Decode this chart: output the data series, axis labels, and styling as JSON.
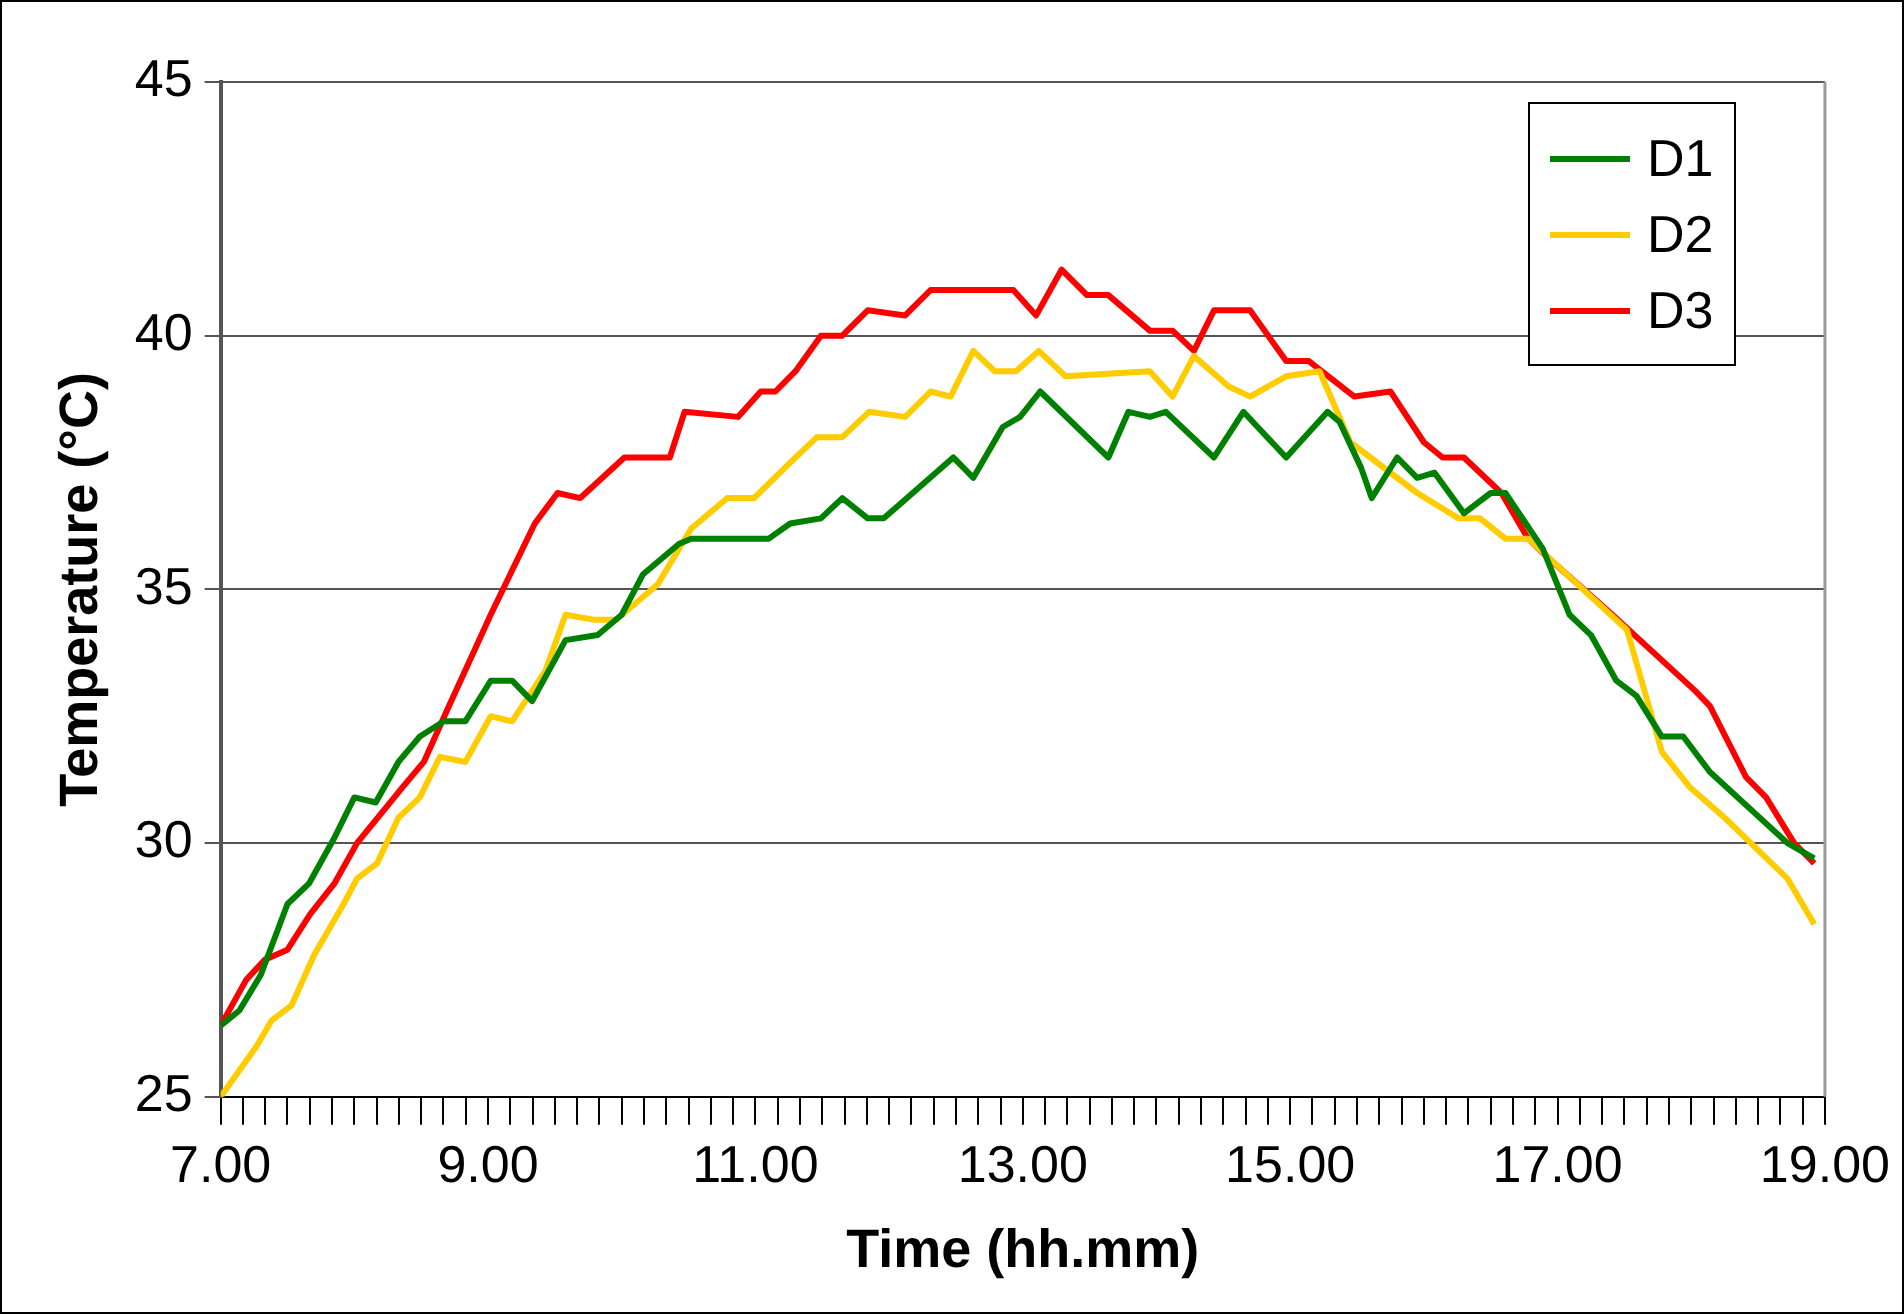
{
  "chart_data": {
    "type": "line",
    "xlabel": "Time (hh.mm)",
    "ylabel": "Temperature (°C)",
    "xlim": [
      7,
      19
    ],
    "ylim": [
      25,
      45
    ],
    "yticks": [
      25,
      30,
      35,
      40,
      45
    ],
    "xticks": [
      {
        "value": 7,
        "label": "7.00"
      },
      {
        "value": 7.1667,
        "label": null
      },
      {
        "value": 7.3333,
        "label": null
      },
      {
        "value": 7.5,
        "label": null
      },
      {
        "value": 7.6667,
        "label": null
      },
      {
        "value": 7.8333,
        "label": null
      },
      {
        "value": 8,
        "label": null
      },
      {
        "value": 8.1667,
        "label": null
      },
      {
        "value": 8.3333,
        "label": null
      },
      {
        "value": 8.5,
        "label": null
      },
      {
        "value": 8.6667,
        "label": null
      },
      {
        "value": 8.8333,
        "label": null
      },
      {
        "value": 9,
        "label": "9.00"
      },
      {
        "value": 9.1667,
        "label": null
      },
      {
        "value": 9.3333,
        "label": null
      },
      {
        "value": 9.5,
        "label": null
      },
      {
        "value": 9.6667,
        "label": null
      },
      {
        "value": 9.8333,
        "label": null
      },
      {
        "value": 10,
        "label": null
      },
      {
        "value": 10.1667,
        "label": null
      },
      {
        "value": 10.3333,
        "label": null
      },
      {
        "value": 10.5,
        "label": null
      },
      {
        "value": 10.6667,
        "label": null
      },
      {
        "value": 10.8333,
        "label": null
      },
      {
        "value": 11,
        "label": "11.00"
      },
      {
        "value": 11.1667,
        "label": null
      },
      {
        "value": 11.3333,
        "label": null
      },
      {
        "value": 11.5,
        "label": null
      },
      {
        "value": 11.6667,
        "label": null
      },
      {
        "value": 11.8333,
        "label": null
      },
      {
        "value": 12,
        "label": null
      },
      {
        "value": 12.1667,
        "label": null
      },
      {
        "value": 12.3333,
        "label": null
      },
      {
        "value": 12.5,
        "label": null
      },
      {
        "value": 12.6667,
        "label": null
      },
      {
        "value": 12.8333,
        "label": null
      },
      {
        "value": 13,
        "label": "13.00"
      },
      {
        "value": 13.1667,
        "label": null
      },
      {
        "value": 13.3333,
        "label": null
      },
      {
        "value": 13.5,
        "label": null
      },
      {
        "value": 13.6667,
        "label": null
      },
      {
        "value": 13.8333,
        "label": null
      },
      {
        "value": 14,
        "label": null
      },
      {
        "value": 14.1667,
        "label": null
      },
      {
        "value": 14.3333,
        "label": null
      },
      {
        "value": 14.5,
        "label": null
      },
      {
        "value": 14.6667,
        "label": null
      },
      {
        "value": 14.8333,
        "label": null
      },
      {
        "value": 15,
        "label": "15.00"
      },
      {
        "value": 15.1667,
        "label": null
      },
      {
        "value": 15.3333,
        "label": null
      },
      {
        "value": 15.5,
        "label": null
      },
      {
        "value": 15.6667,
        "label": null
      },
      {
        "value": 15.8333,
        "label": null
      },
      {
        "value": 16,
        "label": null
      },
      {
        "value": 16.1667,
        "label": null
      },
      {
        "value": 16.3333,
        "label": null
      },
      {
        "value": 16.5,
        "label": null
      },
      {
        "value": 16.6667,
        "label": null
      },
      {
        "value": 16.8333,
        "label": null
      },
      {
        "value": 17,
        "label": "17.00"
      },
      {
        "value": 17.1667,
        "label": null
      },
      {
        "value": 17.3333,
        "label": null
      },
      {
        "value": 17.5,
        "label": null
      },
      {
        "value": 17.6667,
        "label": null
      },
      {
        "value": 17.8333,
        "label": null
      },
      {
        "value": 18,
        "label": null
      },
      {
        "value": 18.1667,
        "label": null
      },
      {
        "value": 18.3333,
        "label": null
      },
      {
        "value": 18.5,
        "label": null
      },
      {
        "value": 18.6667,
        "label": null
      },
      {
        "value": 18.8333,
        "label": null
      },
      {
        "value": 19,
        "label": "19.00"
      }
    ],
    "grid": "y",
    "legend": "top right",
    "marker": "none",
    "line_style": "solid",
    "series": [
      {
        "name": "D1",
        "color": "#008000",
        "x": [
          7.0,
          7.14,
          7.3,
          7.5,
          7.66,
          7.85,
          8.0,
          8.16,
          8.33,
          8.49,
          8.67,
          8.83,
          9.02,
          9.18,
          9.33,
          9.58,
          9.82,
          10.0,
          10.16,
          10.43,
          10.52,
          11.1,
          11.26,
          11.49,
          11.65,
          11.84,
          11.96,
          12.48,
          12.63,
          12.85,
          12.98,
          13.13,
          13.64,
          13.79,
          13.95,
          14.07,
          14.23,
          14.43,
          14.65,
          14.97,
          15.28,
          15.37,
          15.53,
          15.61,
          15.8,
          15.95,
          16.08,
          16.3,
          16.5,
          16.61,
          16.89,
          17.09,
          17.25,
          17.44,
          17.59,
          17.78,
          17.94,
          18.14,
          18.72,
          18.92
        ],
        "values": [
          26.4,
          26.7,
          27.4,
          28.8,
          29.2,
          30.1,
          30.9,
          30.8,
          31.6,
          32.1,
          32.4,
          32.4,
          33.2,
          33.2,
          32.8,
          34.0,
          34.1,
          34.5,
          35.3,
          35.9,
          36.0,
          36.0,
          36.3,
          36.4,
          36.8,
          36.4,
          36.4,
          37.6,
          37.2,
          38.2,
          38.4,
          38.9,
          37.6,
          38.5,
          38.4,
          38.5,
          38.1,
          37.6,
          38.5,
          37.6,
          38.5,
          38.3,
          37.4,
          36.8,
          37.6,
          37.2,
          37.3,
          36.5,
          36.9,
          36.9,
          35.8,
          34.5,
          34.1,
          33.2,
          32.9,
          32.1,
          32.1,
          31.4,
          30.0,
          29.7
        ]
      },
      {
        "name": "D2",
        "color": "#ffcc00",
        "x": [
          7.0,
          7.27,
          7.38,
          7.53,
          7.7,
          7.92,
          8.02,
          8.17,
          8.33,
          8.49,
          8.64,
          8.83,
          9.02,
          9.18,
          9.43,
          9.58,
          9.8,
          9.96,
          10.27,
          10.52,
          10.79,
          10.99,
          11.26,
          11.46,
          11.65,
          11.85,
          12.12,
          12.31,
          12.46,
          12.63,
          12.79,
          12.95,
          13.12,
          13.32,
          13.95,
          14.12,
          14.28,
          14.54,
          14.7,
          14.97,
          15.22,
          15.45,
          15.95,
          16.26,
          16.42,
          16.61,
          16.78,
          17.52,
          17.78,
          17.99,
          18.25,
          18.72,
          18.92
        ],
        "values": [
          25.0,
          26.0,
          26.5,
          26.8,
          27.8,
          28.8,
          29.3,
          29.6,
          30.5,
          30.9,
          31.7,
          31.6,
          32.5,
          32.4,
          33.4,
          34.5,
          34.4,
          34.4,
          35.1,
          36.2,
          36.8,
          36.8,
          37.5,
          38.0,
          38.0,
          38.5,
          38.4,
          38.9,
          38.8,
          39.7,
          39.3,
          39.3,
          39.7,
          39.2,
          39.3,
          38.8,
          39.6,
          39.0,
          38.8,
          39.2,
          39.3,
          37.9,
          36.9,
          36.4,
          36.4,
          36.0,
          36.0,
          34.2,
          31.8,
          31.1,
          30.5,
          29.3,
          28.4
        ]
      },
      {
        "name": "D3",
        "color": "#ff0000",
        "x": [
          7.0,
          7.19,
          7.33,
          7.5,
          7.67,
          7.85,
          8.02,
          8.36,
          8.52,
          8.69,
          9.02,
          9.35,
          9.52,
          9.69,
          10.02,
          10.36,
          10.47,
          10.87,
          11.04,
          11.15,
          11.3,
          11.49,
          11.65,
          11.84,
          12.12,
          12.31,
          12.93,
          13.1,
          13.29,
          13.48,
          13.64,
          13.95,
          14.12,
          14.28,
          14.43,
          14.7,
          14.97,
          15.14,
          15.48,
          15.75,
          16.0,
          16.14,
          16.3,
          16.58,
          16.78,
          16.94,
          17.41,
          18.03,
          18.14,
          18.41,
          18.56,
          18.77,
          18.92
        ],
        "values": [
          26.4,
          27.3,
          27.7,
          27.9,
          28.6,
          29.2,
          30.0,
          31.1,
          31.6,
          32.6,
          34.5,
          36.3,
          36.9,
          36.8,
          37.6,
          37.6,
          38.5,
          38.4,
          38.9,
          38.9,
          39.3,
          40.0,
          40.0,
          40.5,
          40.4,
          40.9,
          40.9,
          40.4,
          41.3,
          40.8,
          40.8,
          40.1,
          40.1,
          39.7,
          40.5,
          40.5,
          39.5,
          39.5,
          38.8,
          38.9,
          37.9,
          37.6,
          37.6,
          36.9,
          36.0,
          35.6,
          34.5,
          33.0,
          32.7,
          31.3,
          30.9,
          30.0,
          29.6
        ]
      }
    ]
  }
}
